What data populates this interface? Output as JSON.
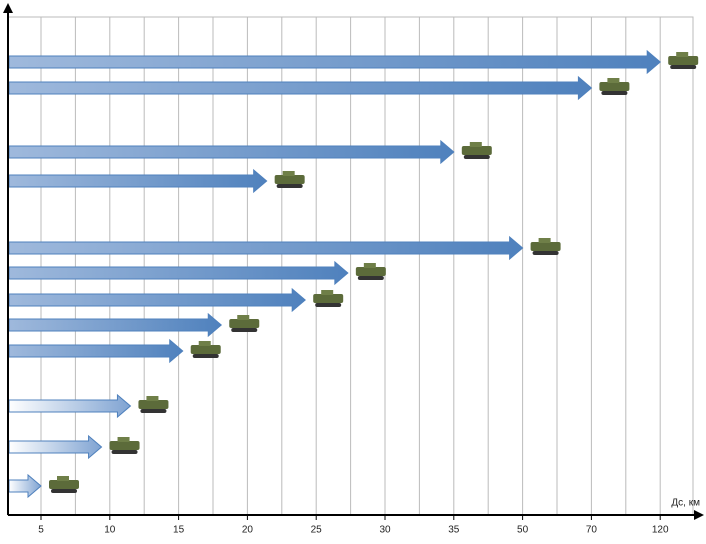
{
  "chart_data": {
    "type": "range_arrows",
    "x_label": "Дс, км",
    "values": [
      120,
      70,
      35,
      21.4,
      50,
      27.3,
      24.2,
      18.1,
      15.3,
      11.5,
      9.4,
      5
    ],
    "color": "#4f81bd",
    "xticks": [
      5,
      10,
      15,
      20,
      25,
      30,
      35,
      50,
      70,
      120
    ],
    "grid": true
  }
}
